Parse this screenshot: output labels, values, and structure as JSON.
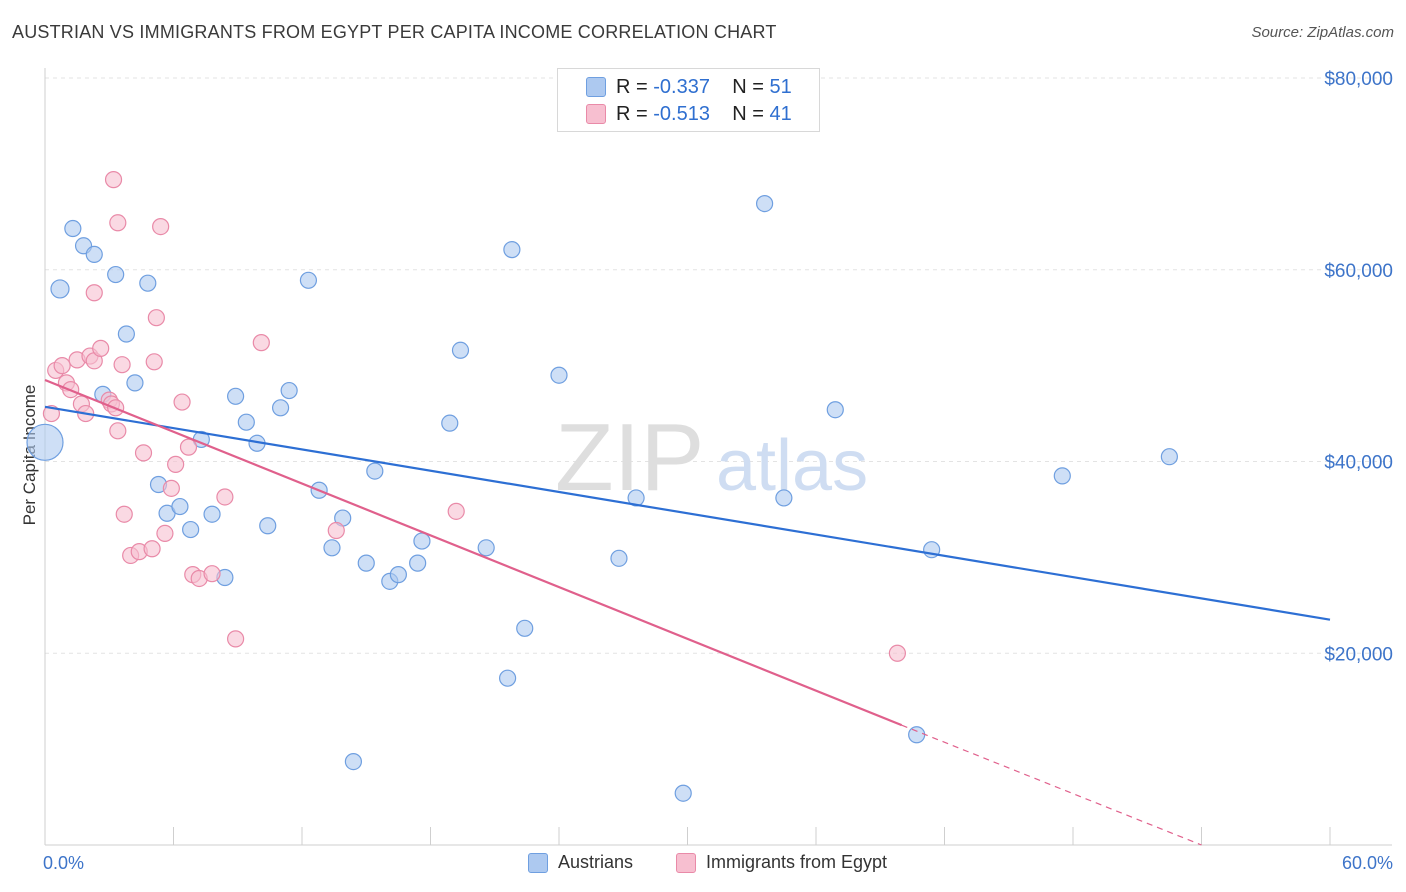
{
  "title": "AUSTRIAN VS IMMIGRANTS FROM EGYPT PER CAPITA INCOME CORRELATION CHART",
  "source": "Source: ZipAtlas.com",
  "watermark": {
    "zip": "ZIP",
    "atlas": "atlas"
  },
  "legend_top": {
    "austrians": {
      "r_label": "R =",
      "r_value": "-0.337",
      "n_label": "N =",
      "n_value": "51"
    },
    "egypt": {
      "r_label": "R =",
      "r_value": "-0.513",
      "n_label": "N =",
      "n_value": "41"
    }
  },
  "colors": {
    "austrians_fill": "#adc9f0",
    "austrians_stroke": "#6f9fe0",
    "austrians_line": "#2d6fd4",
    "egypt_fill": "#f7bfd0",
    "egypt_stroke": "#e98aa8",
    "egypt_line": "#e0608c",
    "grid": "#e3e3e3",
    "tick_label": "#3d74c9"
  },
  "chart_data": {
    "type": "scatter",
    "title": "AUSTRIAN VS IMMIGRANTS FROM EGYPT PER CAPITA INCOME CORRELATION CHART",
    "xlabel": "",
    "ylabel": "Per Capita Income",
    "xlim": [
      0,
      60
    ],
    "ylim": [
      0,
      80000
    ],
    "x_tick_labels": [
      "0.0%",
      "60.0%"
    ],
    "y_ticks": [
      20000,
      40000,
      60000,
      80000
    ],
    "y_tick_labels": [
      "$20,000",
      "$40,000",
      "$60,000",
      "$80,000"
    ],
    "grid": true,
    "legend_position": "bottom-center",
    "series": [
      {
        "name": "Austrians",
        "r": -0.337,
        "n": 51,
        "trend": {
          "x0": 0,
          "y0": 45700,
          "x1": 60,
          "y1": 23500
        },
        "points": [
          [
            0.0,
            42000,
            18
          ],
          [
            0.7,
            58000,
            9
          ],
          [
            1.3,
            64300,
            8
          ],
          [
            1.8,
            62500,
            8
          ],
          [
            2.3,
            61600,
            8
          ],
          [
            3.3,
            59500,
            8
          ],
          [
            3.8,
            53300,
            8
          ],
          [
            4.2,
            48200,
            8
          ],
          [
            4.8,
            58600,
            8
          ],
          [
            2.7,
            47000,
            8
          ],
          [
            5.3,
            37600,
            8
          ],
          [
            5.7,
            34600,
            8
          ],
          [
            6.3,
            35300,
            8
          ],
          [
            6.8,
            32900,
            8
          ],
          [
            7.3,
            42300,
            8
          ],
          [
            7.8,
            34500,
            8
          ],
          [
            8.4,
            27900,
            8
          ],
          [
            8.9,
            46800,
            8
          ],
          [
            9.4,
            44100,
            8
          ],
          [
            9.9,
            41900,
            8
          ],
          [
            10.4,
            33300,
            8
          ],
          [
            11.0,
            45600,
            8
          ],
          [
            11.4,
            47400,
            8
          ],
          [
            12.3,
            58900,
            8
          ],
          [
            12.8,
            37000,
            8
          ],
          [
            13.4,
            31000,
            8
          ],
          [
            13.9,
            34100,
            8
          ],
          [
            14.4,
            8700,
            8
          ],
          [
            15.0,
            29400,
            8
          ],
          [
            15.4,
            39000,
            8
          ],
          [
            16.1,
            27500,
            8
          ],
          [
            16.5,
            28200,
            8
          ],
          [
            17.4,
            29400,
            8
          ],
          [
            17.6,
            31700,
            8
          ],
          [
            18.9,
            44000,
            8
          ],
          [
            19.4,
            51600,
            8
          ],
          [
            20.6,
            31000,
            8
          ],
          [
            21.6,
            17400,
            8
          ],
          [
            21.8,
            62100,
            8
          ],
          [
            22.4,
            22600,
            8
          ],
          [
            24.0,
            49000,
            8
          ],
          [
            26.8,
            29900,
            8
          ],
          [
            27.6,
            36200,
            8
          ],
          [
            29.8,
            5400,
            8
          ],
          [
            33.6,
            66900,
            8
          ],
          [
            34.5,
            36200,
            8
          ],
          [
            36.9,
            45400,
            8
          ],
          [
            40.7,
            11500,
            8
          ],
          [
            41.4,
            30800,
            8
          ],
          [
            47.5,
            38500,
            8
          ],
          [
            52.5,
            40500,
            8
          ]
        ]
      },
      {
        "name": "Immigrants from Egypt",
        "r": -0.513,
        "n": 41,
        "trend": {
          "x0": 0,
          "y0": 48500,
          "x1": 40,
          "y1": 12500,
          "dash_x1": 54,
          "dash_y1": 0
        },
        "points": [
          [
            0.3,
            45000,
            8
          ],
          [
            0.5,
            49500,
            8
          ],
          [
            0.8,
            50000,
            8
          ],
          [
            1.0,
            48200,
            8
          ],
          [
            1.2,
            47500,
            8
          ],
          [
            1.5,
            50600,
            8
          ],
          [
            1.7,
            46000,
            8
          ],
          [
            1.9,
            45000,
            8
          ],
          [
            2.1,
            51000,
            8
          ],
          [
            2.3,
            50500,
            8
          ],
          [
            2.3,
            57600,
            8
          ],
          [
            2.6,
            51800,
            8
          ],
          [
            3.0,
            46400,
            8
          ],
          [
            3.1,
            46000,
            8
          ],
          [
            3.2,
            69400,
            8
          ],
          [
            3.3,
            45600,
            8
          ],
          [
            3.4,
            64900,
            8
          ],
          [
            3.4,
            43200,
            8
          ],
          [
            3.6,
            50100,
            8
          ],
          [
            3.7,
            34500,
            8
          ],
          [
            4.0,
            30200,
            8
          ],
          [
            4.4,
            30600,
            8
          ],
          [
            4.6,
            40900,
            8
          ],
          [
            5.0,
            30900,
            8
          ],
          [
            5.1,
            50400,
            8
          ],
          [
            5.2,
            55000,
            8
          ],
          [
            5.4,
            64500,
            8
          ],
          [
            5.6,
            32500,
            8
          ],
          [
            5.9,
            37200,
            8
          ],
          [
            6.1,
            39700,
            8
          ],
          [
            6.4,
            46200,
            8
          ],
          [
            6.7,
            41500,
            8
          ],
          [
            6.9,
            28200,
            8
          ],
          [
            7.2,
            27800,
            8
          ],
          [
            7.8,
            28300,
            8
          ],
          [
            8.4,
            36300,
            8
          ],
          [
            8.9,
            21500,
            8
          ],
          [
            10.1,
            52400,
            8
          ],
          [
            13.6,
            32800,
            8
          ],
          [
            19.2,
            34800,
            8
          ],
          [
            39.8,
            20000,
            8
          ]
        ]
      }
    ]
  },
  "bottom_legend": {
    "austrians": "Austrians",
    "egypt": "Immigrants from Egypt"
  }
}
